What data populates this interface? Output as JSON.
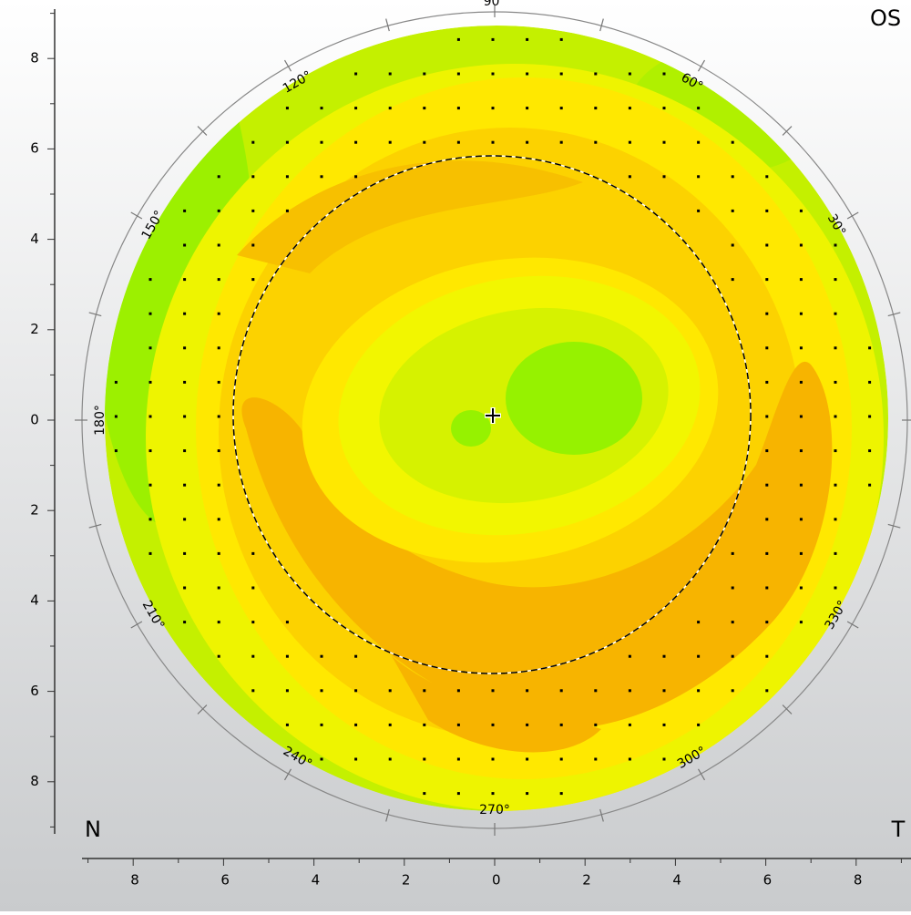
{
  "eye": "OS",
  "corner_labels": {
    "left": "N",
    "right": "T"
  },
  "vertical_axis": {
    "labels": [
      "8",
      "6",
      "4",
      "2",
      "0",
      "2",
      "4",
      "6",
      "8"
    ]
  },
  "horizontal_axis": {
    "labels": [
      "8",
      "6",
      "4",
      "2",
      "0",
      "2",
      "4",
      "6",
      "8"
    ]
  },
  "angle_labels": [
    "90°",
    "60°",
    "30°",
    "180°",
    "330°",
    "300°",
    "270°",
    "240°",
    "210°",
    "150°",
    "120°"
  ]
}
